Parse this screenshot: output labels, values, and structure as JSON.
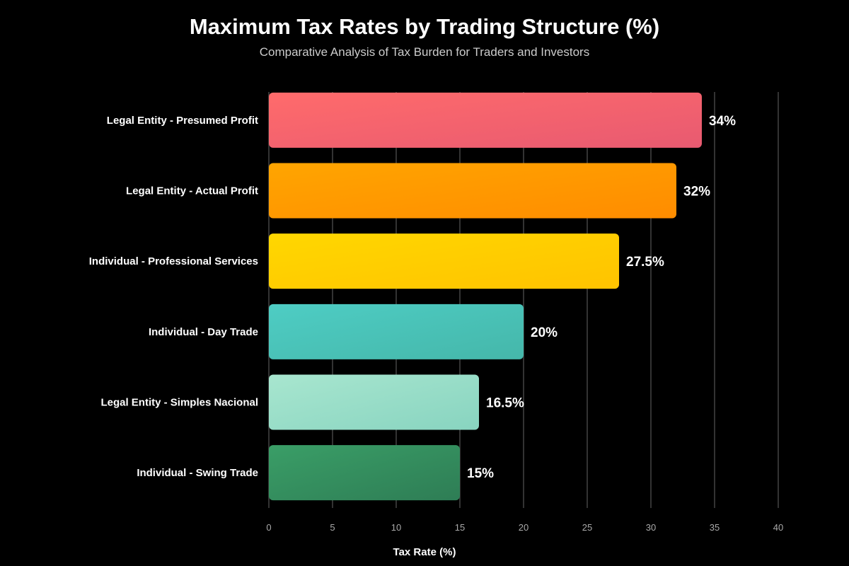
{
  "chart_data": {
    "type": "bar",
    "orientation": "horizontal",
    "title": "Maximum Tax Rates by Trading Structure (%)",
    "subtitle": "Comparative Analysis of Tax Burden for Traders and Investors",
    "categories": [
      "Legal Entity - Presumed Profit",
      "Legal Entity - Actual Profit",
      "Individual - Professional Services",
      "Individual - Day Trade",
      "Legal Entity - Simples Nacional",
      "Individual - Swing Trade"
    ],
    "values": [
      34,
      32,
      27.5,
      20,
      16.5,
      15
    ],
    "value_labels": [
      "34%",
      "32%",
      "27.5%",
      "20%",
      "16.5%",
      "15%"
    ],
    "colors": [
      [
        "#ff6b6b",
        "#e85a71"
      ],
      [
        "#ffa500",
        "#ff8c00"
      ],
      [
        "#ffd700",
        "#ffc300"
      ],
      [
        "#4ecdc4",
        "#45b7aa"
      ],
      [
        "#a8e6cf",
        "#88d4c0"
      ],
      [
        "#3a9e67",
        "#2e7d55"
      ]
    ],
    "xlabel": "Tax Rate (%)",
    "ylabel": "",
    "xlim": [
      0,
      40
    ],
    "xticks": [
      0,
      5,
      10,
      15,
      20,
      25,
      30,
      35,
      40
    ],
    "grid": true,
    "legend": "none"
  }
}
